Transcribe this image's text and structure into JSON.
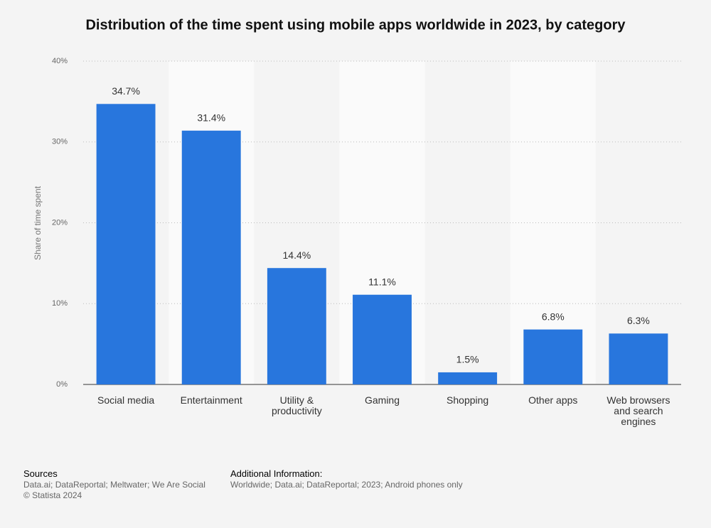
{
  "chart_data": {
    "type": "bar",
    "title": "Distribution of the time spent using mobile apps worldwide in 2023, by category",
    "y_label": "Share of time spent",
    "categories": [
      "Social media",
      "Entertainment",
      "Utility & productivity",
      "Gaming",
      "Shopping",
      "Other apps",
      "Web browsers and search engines"
    ],
    "values": [
      34.7,
      31.4,
      14.4,
      11.1,
      1.5,
      6.8,
      6.3
    ],
    "value_labels": [
      "34.7%",
      "31.4%",
      "14.4%",
      "11.1%",
      "1.5%",
      "6.8%",
      "6.3%"
    ],
    "color": "#2876dd",
    "ylim": [
      0,
      40
    ],
    "yticks": [
      {
        "value": 0,
        "label": "0%"
      },
      {
        "value": 10,
        "label": "10%"
      },
      {
        "value": 20,
        "label": "20%"
      },
      {
        "value": 30,
        "label": "30%"
      },
      {
        "value": 40,
        "label": "40%"
      }
    ],
    "grid": true
  },
  "footer": {
    "sources_title": "Sources",
    "sources": "Data.ai; DataReportal; Meltwater; We Are Social",
    "copyright": "© Statista 2024",
    "info_title": "Additional Information:",
    "info": "Worldwide; Data.ai; DataReportal; 2023; Android phones only"
  }
}
